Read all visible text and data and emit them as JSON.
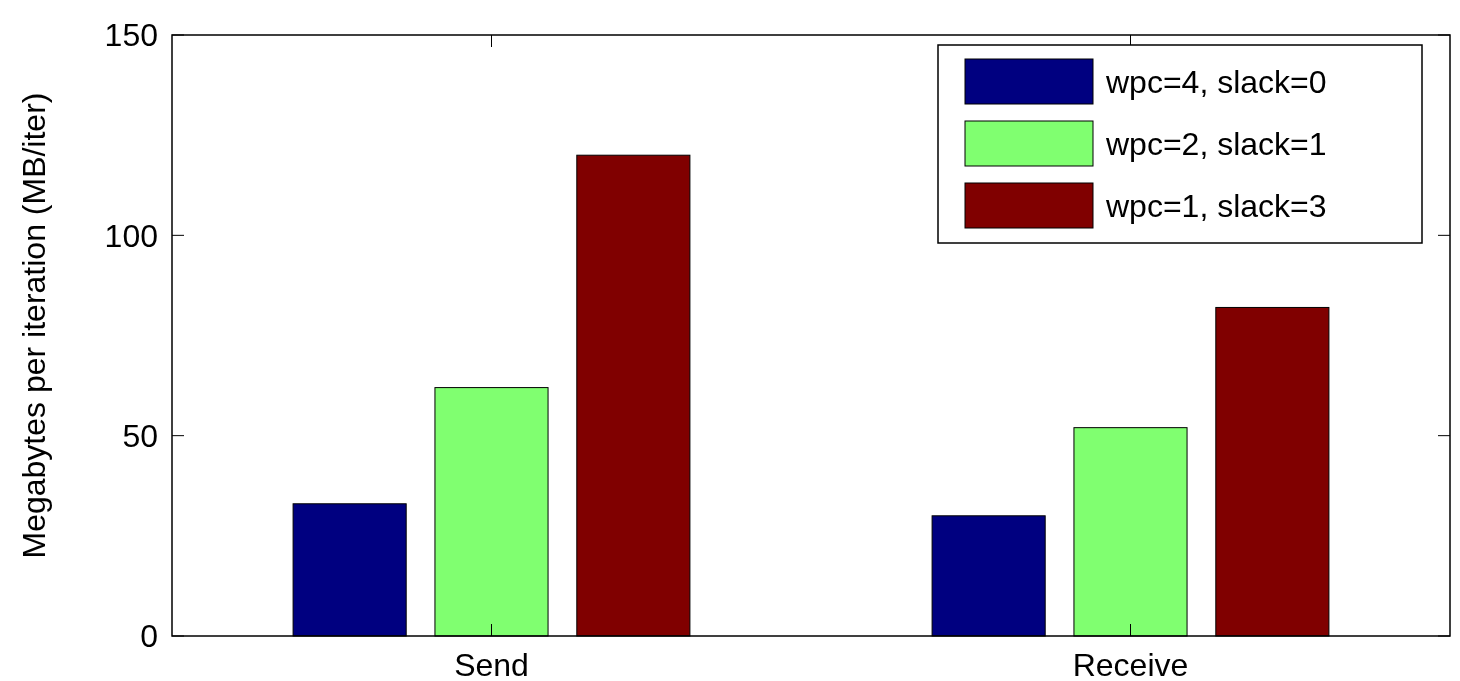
{
  "chart_data": {
    "type": "bar",
    "ylabel": "Megabytes per iteration (MB/iter)",
    "categories": [
      "Send",
      "Receive"
    ],
    "series": [
      {
        "name": "wpc=4, slack=0",
        "color": "#000080",
        "values": [
          33,
          30
        ]
      },
      {
        "name": "wpc=2, slack=1",
        "color": "#80ff70",
        "values": [
          62,
          52
        ]
      },
      {
        "name": "wpc=1, slack=3",
        "color": "#800000",
        "values": [
          120,
          82
        ]
      }
    ],
    "ylim": [
      0,
      150
    ],
    "yticks": [
      0,
      50,
      100,
      150
    ],
    "grid": false,
    "legend": "top right"
  }
}
